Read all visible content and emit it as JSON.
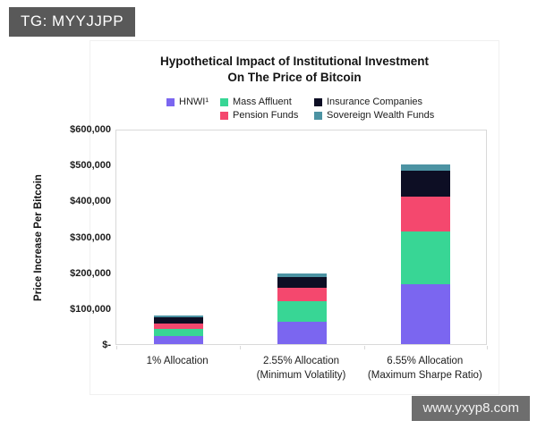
{
  "badge": {
    "text": "TG: MYYJJPP"
  },
  "watermark": {
    "text": "www.yxyp8.com"
  },
  "chart": {
    "title_line1": "Hypothetical Impact of Institutional Investment",
    "title_line2": "On The Price of Bitcoin"
  },
  "chart_data": {
    "type": "bar",
    "stacked": true,
    "title": "Hypothetical Impact of Institutional Investment On The Price of Bitcoin",
    "xlabel": "",
    "ylabel": "Price Increase Per Bitcoin",
    "ylim": [
      0,
      600000
    ],
    "ytick_step": 100000,
    "ytick_labels": [
      "$-",
      "$100,000",
      "$200,000",
      "$300,000",
      "$400,000",
      "$500,000",
      "$600,000"
    ],
    "grid": false,
    "legend_position": "top",
    "categories": [
      "1% Allocation",
      "2.55% Allocation (Minimum Volatility)",
      "6.55% Allocation (Maximum Sharpe Ratio)"
    ],
    "category_label_lines": [
      [
        "1% Allocation"
      ],
      [
        "2.55% Allocation",
        "(Minimum Volatility)"
      ],
      [
        "6.55% Allocation",
        "(Maximum Sharpe Ratio)"
      ]
    ],
    "series": [
      {
        "name": "HNWI¹",
        "color": "#7B66F0",
        "values": [
          22500,
          62500,
          168000
        ]
      },
      {
        "name": "Mass Affluent",
        "color": "#38D695",
        "values": [
          20000,
          56000,
          147000
        ]
      },
      {
        "name": "Pension Funds",
        "color": "#F4486E",
        "values": [
          14000,
          39000,
          95000
        ]
      },
      {
        "name": "Insurance Companies",
        "color": "#0D0E24",
        "values": [
          17500,
          30000,
          73000
        ]
      },
      {
        "name": "Sovereign Wealth Funds",
        "color": "#4C93A3",
        "values": [
          6000,
          10000,
          17500
        ]
      }
    ],
    "stack_order_bottom_to_top": [
      "HNWI¹",
      "Mass Affluent",
      "Pension Funds",
      "Insurance Companies",
      "Sovereign Wealth Funds"
    ],
    "approx_totals": [
      80000,
      197500,
      500500
    ]
  }
}
